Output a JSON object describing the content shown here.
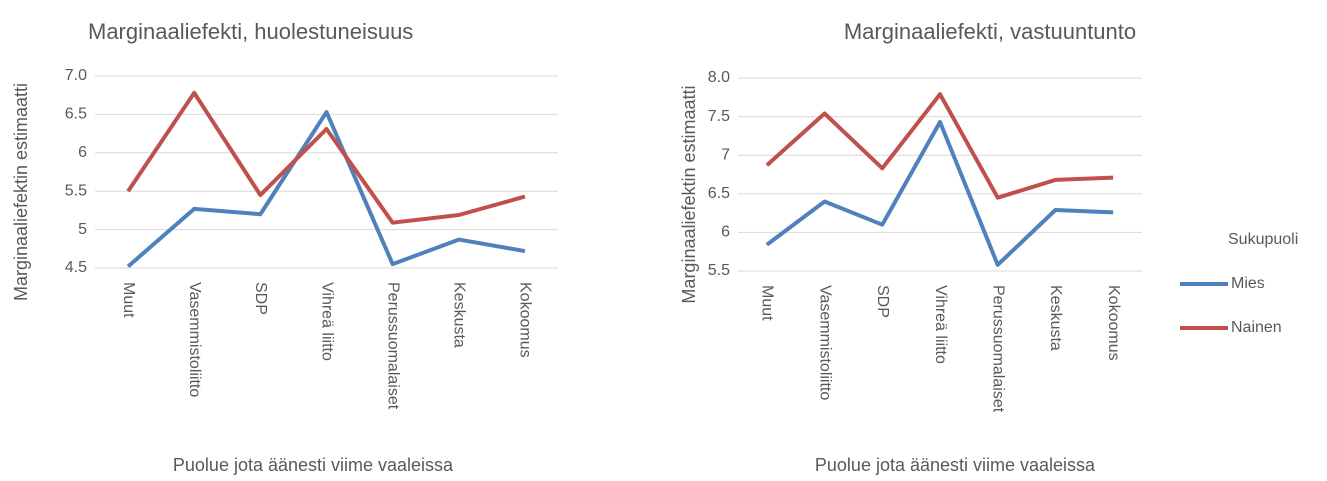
{
  "chart_data": [
    {
      "type": "line",
      "title": "Marginaaliefekti, huolestuneisuus",
      "xlabel": "Puolue jota äänesti viime vaaleissa",
      "ylabel": "Marginaaliefektin estimaatti",
      "categories": [
        "Muut",
        "Vasemmistoliitto",
        "SDP",
        "Vihreä liitto",
        "Perussuomalaiset",
        "Keskusta",
        "Kokoomus"
      ],
      "series": [
        {
          "color": "#4f81bd",
          "values": [
            4.52,
            5.27,
            5.2,
            6.53,
            4.55,
            4.87,
            4.72
          ]
        },
        {
          "color": "#c0504d",
          "values": [
            5.5,
            6.78,
            5.45,
            6.31,
            5.09,
            5.19,
            5.43
          ]
        }
      ],
      "ylim": [
        4.5,
        7
      ],
      "yticks": [
        4.5,
        5,
        5.5,
        6,
        6.5,
        {
          "value": 7,
          "label": "7.0"
        }
      ],
      "grid": true
    },
    {
      "type": "line",
      "title": "Marginaaliefekti, vastuuntunto",
      "xlabel": "Puolue jota äänesti viime vaaleissa",
      "ylabel": "Marginaaliefektin estimaatti",
      "categories": [
        "Muut",
        "Vasemmistoliitto",
        "SDP",
        "Vihreä liitto",
        "Perussuomalaiset",
        "Keskusta",
        "Kokoomus"
      ],
      "legend_title": "Sukupuoli",
      "legend": "right",
      "series": [
        {
          "name": "Mies",
          "color": "#4f81bd",
          "values": [
            5.84,
            6.4,
            6.1,
            7.43,
            5.58,
            6.29,
            6.26
          ]
        },
        {
          "name": "Nainen",
          "color": "#c0504d",
          "values": [
            6.87,
            7.54,
            6.83,
            7.79,
            6.45,
            6.68,
            6.71
          ]
        }
      ],
      "ylim": [
        5.5,
        8
      ],
      "yticks": [
        5.5,
        6,
        6.5,
        7,
        7.5,
        {
          "value": 8,
          "label": "8.0"
        }
      ],
      "grid": true
    }
  ]
}
